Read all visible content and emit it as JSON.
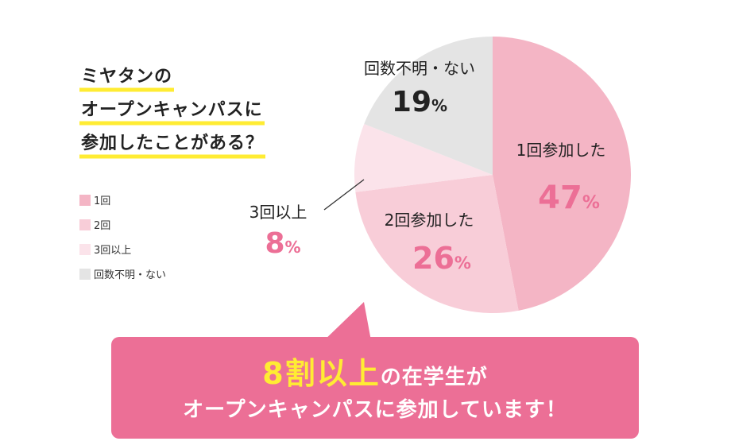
{
  "colors": {
    "slice_1": "#f4b5c5",
    "slice_2": "#f8cdd8",
    "slice_3": "#fbe3ea",
    "slice_4": "#e4e4e4",
    "accent": "#ec6f96",
    "highlight": "#ffec33",
    "banner_strong": "#ffec33",
    "text_dark": "#222222"
  },
  "title": {
    "lines": [
      "ミヤタンの",
      "オープンキャンパスに",
      "参加したことがある？"
    ]
  },
  "chart_data": {
    "type": "pie",
    "title": "ミヤタンのオープンキャンパスに参加したことがある？",
    "legend_position": "left",
    "start": "top",
    "direction": "clockwise",
    "slices": [
      {
        "legend": "1回",
        "label": "1回参加した",
        "value": 47,
        "unit": "%",
        "color": "#f4b5c5"
      },
      {
        "legend": "2回",
        "label": "2回参加した",
        "value": 26,
        "unit": "%",
        "color": "#f8cdd8"
      },
      {
        "legend": "3回以上",
        "label": "3回以上",
        "value": 8,
        "unit": "%",
        "color": "#fbe3ea"
      },
      {
        "legend": "回数不明・ない",
        "label": "回数不明・ない",
        "value": 19,
        "unit": "%",
        "color": "#e4e4e4"
      }
    ]
  },
  "banner": {
    "strong": "8割以上",
    "rest": "の在学生が",
    "line2": "オープンキャンパスに参加しています！"
  }
}
